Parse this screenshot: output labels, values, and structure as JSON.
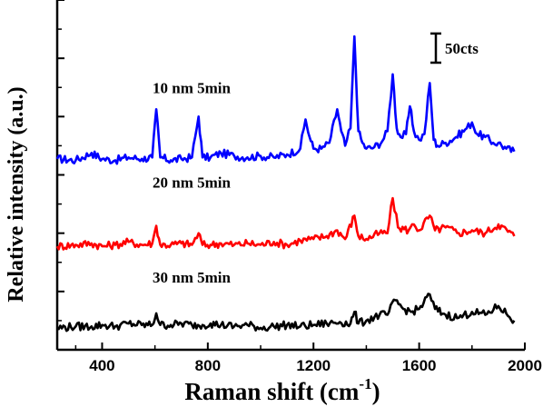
{
  "chart_data": {
    "type": "line",
    "title": "",
    "xlabel": "Raman shift (cm",
    "xlabel_superscript": "-1",
    "xlabel_suffix": ")",
    "ylabel": "Relative intensity (a.u.)",
    "xlim": [
      230,
      2000
    ],
    "ylim": [
      0,
      12
    ],
    "grid": false,
    "x_ticks": [
      400,
      800,
      1200,
      1600,
      2000
    ],
    "x_tick_labels": [
      "400",
      "800",
      "1200",
      "1600",
      "2000"
    ],
    "scale_bar": {
      "label": "50cts",
      "value": 1.0
    },
    "series": [
      {
        "name": "10 nm 5min",
        "color": "#0000ff",
        "label_at": [
          1.0,
          9.0
        ],
        "x": [
          230,
          300,
          360,
          400,
          450,
          500,
          550,
          590,
          605,
          620,
          660,
          700,
          740,
          765,
          780,
          810,
          850,
          900,
          950,
          1000,
          1050,
          1100,
          1150,
          1170,
          1185,
          1200,
          1230,
          1260,
          1290,
          1305,
          1320,
          1340,
          1355,
          1370,
          1385,
          1400,
          1430,
          1460,
          1480,
          1500,
          1515,
          1530,
          1550,
          1565,
          1580,
          1600,
          1620,
          1640,
          1655,
          1670,
          1700,
          1740,
          1780,
          1800,
          1820,
          1850,
          1880,
          1900,
          1930,
          1960
        ],
        "y": [
          6.55,
          6.5,
          6.75,
          6.55,
          6.5,
          6.6,
          6.55,
          6.6,
          8.25,
          6.6,
          6.5,
          6.55,
          6.6,
          8.0,
          6.6,
          6.6,
          6.75,
          6.65,
          6.6,
          6.65,
          6.6,
          6.7,
          6.9,
          7.9,
          7.3,
          6.9,
          6.9,
          7.1,
          8.25,
          7.5,
          7.0,
          7.6,
          10.75,
          7.5,
          7.1,
          6.9,
          6.95,
          7.15,
          7.5,
          9.45,
          7.6,
          7.3,
          7.4,
          8.35,
          7.5,
          7.2,
          7.4,
          9.15,
          7.2,
          7.0,
          7.1,
          7.3,
          7.6,
          7.8,
          7.4,
          7.3,
          7.1,
          7.1,
          6.9,
          6.8
        ]
      },
      {
        "name": "20 nm 5min",
        "color": "#ff0000",
        "label_at": [
          1.0,
          5.75
        ],
        "x": [
          230,
          300,
          360,
          400,
          450,
          500,
          550,
          590,
          605,
          620,
          660,
          700,
          740,
          765,
          780,
          810,
          850,
          900,
          950,
          1000,
          1050,
          1100,
          1150,
          1200,
          1250,
          1290,
          1320,
          1355,
          1370,
          1400,
          1450,
          1480,
          1500,
          1520,
          1560,
          1580,
          1600,
          1640,
          1660,
          1700,
          1750,
          1800,
          1850,
          1900,
          1960
        ],
        "y": [
          3.55,
          3.6,
          3.65,
          3.55,
          3.6,
          3.7,
          3.6,
          3.65,
          4.25,
          3.6,
          3.6,
          3.65,
          3.6,
          4.0,
          3.6,
          3.6,
          3.65,
          3.6,
          3.65,
          3.6,
          3.7,
          3.6,
          3.75,
          3.8,
          3.9,
          4.1,
          3.8,
          4.6,
          3.9,
          3.8,
          4.0,
          4.0,
          5.2,
          4.2,
          4.1,
          4.3,
          4.1,
          4.6,
          4.1,
          4.2,
          4.0,
          4.1,
          4.0,
          4.3,
          3.9
        ]
      },
      {
        "name": "30 nm 5min",
        "color": "#000000",
        "label_at": [
          1.0,
          2.5
        ],
        "x": [
          230,
          300,
          360,
          400,
          450,
          500,
          550,
          590,
          605,
          620,
          660,
          700,
          740,
          780,
          810,
          850,
          900,
          950,
          1000,
          1050,
          1100,
          1150,
          1200,
          1250,
          1300,
          1340,
          1355,
          1370,
          1400,
          1450,
          1480,
          1510,
          1540,
          1570,
          1600,
          1640,
          1660,
          1700,
          1750,
          1800,
          1850,
          1900,
          1960
        ],
        "y": [
          0.75,
          0.8,
          0.8,
          0.85,
          0.8,
          0.9,
          0.85,
          0.85,
          1.25,
          0.85,
          0.85,
          0.9,
          0.85,
          0.85,
          0.9,
          0.85,
          0.8,
          0.85,
          0.75,
          0.8,
          0.85,
          0.8,
          0.85,
          0.9,
          0.95,
          0.9,
          1.3,
          0.9,
          1.0,
          1.2,
          1.2,
          1.7,
          1.4,
          1.3,
          1.4,
          1.9,
          1.4,
          1.2,
          1.1,
          1.3,
          1.2,
          1.5,
          1.0
        ]
      }
    ]
  }
}
